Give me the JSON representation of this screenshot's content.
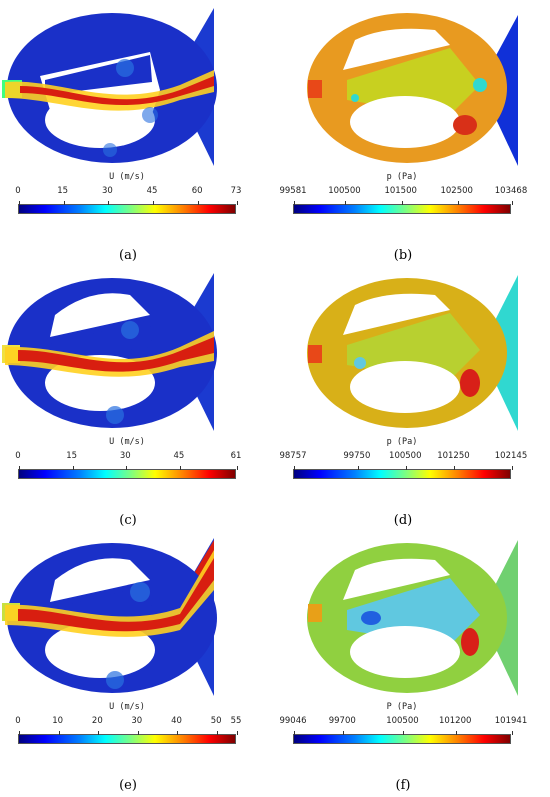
{
  "panels": [
    {
      "id": "a",
      "caption": "(a)",
      "colorbar_title": "U (m/s)",
      "field": "velocity",
      "ticks": [
        "0",
        "15",
        "30",
        "45",
        "60",
        "73"
      ],
      "tick_fracs": [
        0,
        0.205,
        0.41,
        0.615,
        0.822,
        1
      ]
    },
    {
      "id": "b",
      "caption": "(b)",
      "colorbar_title": "p (Pa)",
      "field": "pressure",
      "ticks": [
        "99581",
        "100500",
        "101500",
        "102500",
        "103468"
      ],
      "tick_fracs": [
        0,
        0.236,
        0.494,
        0.751,
        1
      ]
    },
    {
      "id": "c",
      "caption": "(c)",
      "colorbar_title": "U (m/s)",
      "field": "velocity",
      "ticks": [
        "0",
        "15",
        "30",
        "45",
        "61"
      ],
      "tick_fracs": [
        0,
        0.246,
        0.492,
        0.738,
        1
      ]
    },
    {
      "id": "d",
      "caption": "(d)",
      "colorbar_title": "p (Pa)",
      "field": "pressure",
      "ticks": [
        "98757",
        "99750",
        "100500",
        "101250",
        "102145"
      ],
      "tick_fracs": [
        0,
        0.293,
        0.515,
        0.736,
        1
      ]
    },
    {
      "id": "e",
      "caption": "(e)",
      "colorbar_title": "U (m/s)",
      "field": "velocity",
      "ticks": [
        "0",
        "10",
        "20",
        "30",
        "40",
        "50",
        "55"
      ],
      "tick_fracs": [
        0,
        0.182,
        0.364,
        0.545,
        0.727,
        0.909,
        1
      ]
    },
    {
      "id": "f",
      "caption": "(f)",
      "colorbar_title": "P (Pa)",
      "field": "pressure",
      "ticks": [
        "99046",
        "99700",
        "100500",
        "101200",
        "101941"
      ],
      "tick_fracs": [
        0,
        0.226,
        0.502,
        0.744,
        1
      ]
    }
  ],
  "colors": {
    "vel_bg": "#1a30c8",
    "vel_jet": "#d81e10",
    "vel_jet_edge": "#ffd020",
    "pres_bg_b": "#e89a20",
    "pres_wedge_b": "#c8d020",
    "pres_fan_b": "#1030d8",
    "pres_bg_d": "#d8b018",
    "pres_fan_d": "#30d8d0",
    "pres_bg_f": "#90d040",
    "pres_fan_f": "#70d070"
  }
}
